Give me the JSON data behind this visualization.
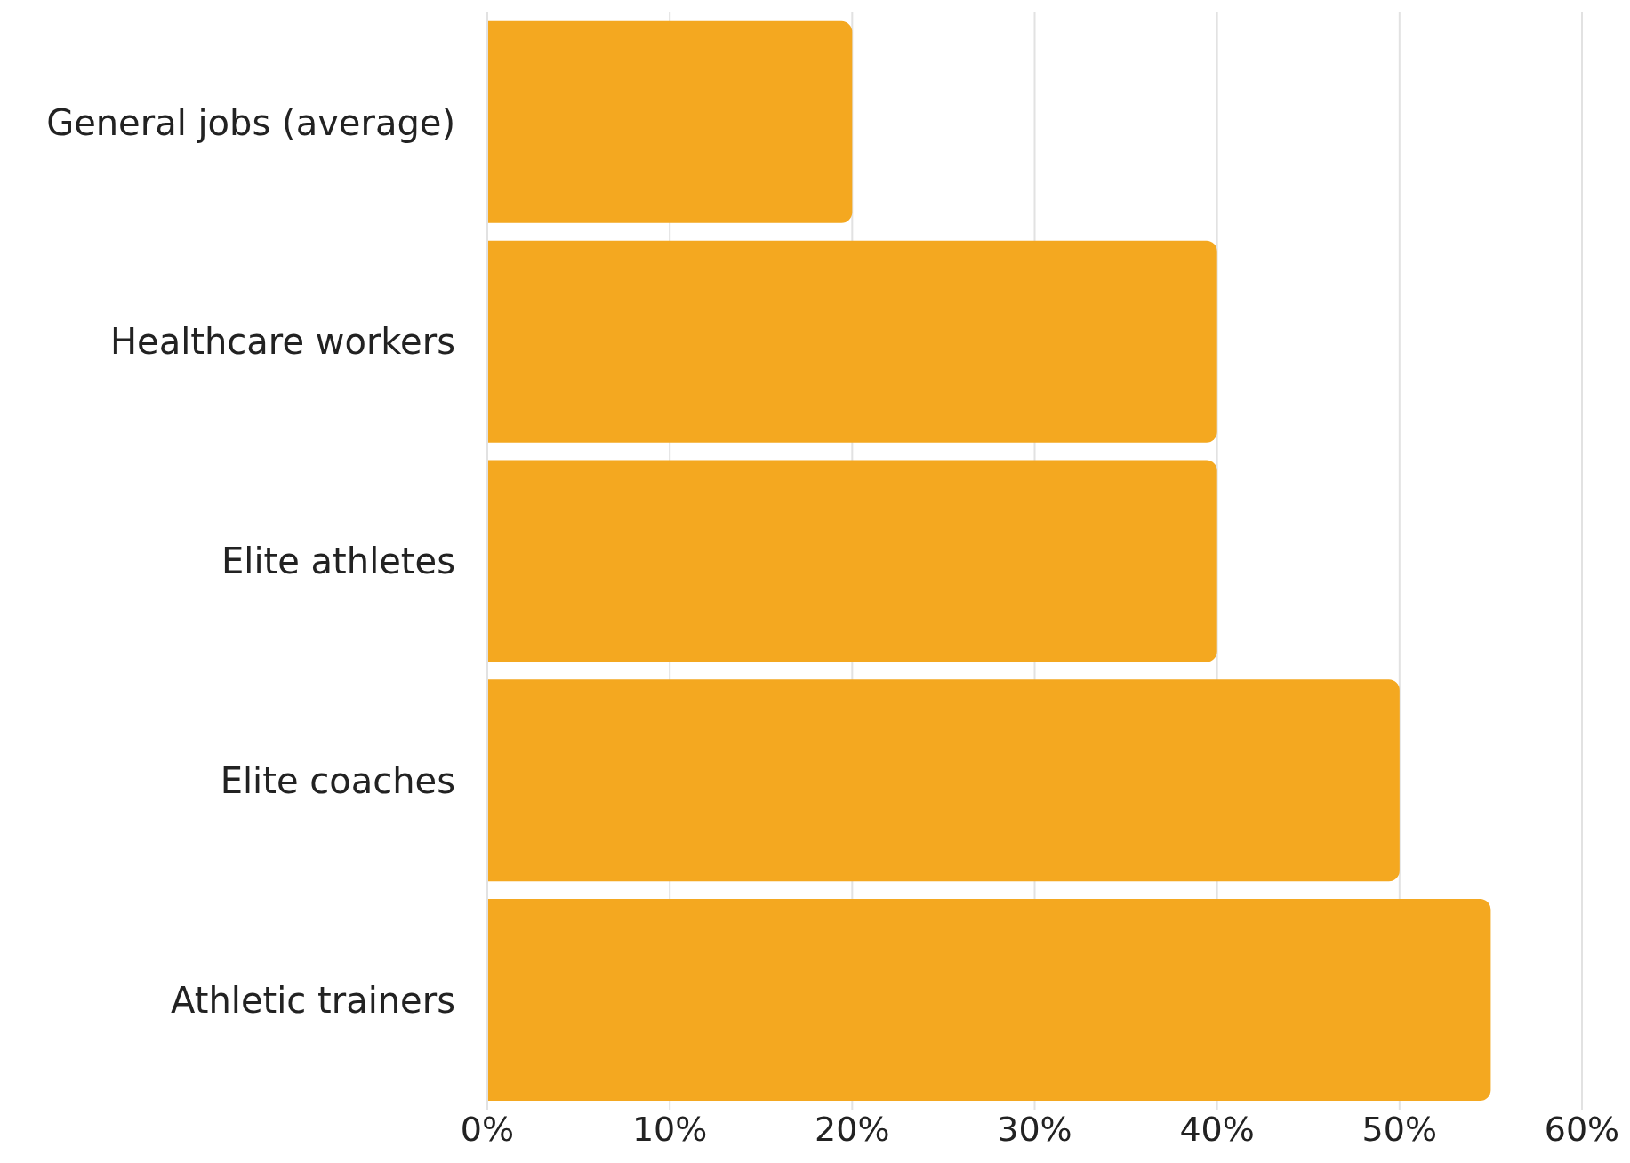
{
  "chart_data": {
    "type": "bar",
    "orientation": "horizontal",
    "categories": [
      "General jobs (average)",
      "Healthcare workers",
      "Elite athletes",
      "Elite coaches",
      "Athletic trainers"
    ],
    "values": [
      20,
      40,
      40,
      50,
      55
    ],
    "color": "#f4a820",
    "xlim": [
      0,
      60
    ],
    "xticks": [
      {
        "value": 0,
        "label": "0%"
      },
      {
        "value": 10,
        "label": "10%"
      },
      {
        "value": 20,
        "label": "20%"
      },
      {
        "value": 30,
        "label": "30%"
      },
      {
        "value": 40,
        "label": "40%"
      },
      {
        "value": 50,
        "label": "50%"
      },
      {
        "value": 60,
        "label": "60%"
      }
    ],
    "grid": "x"
  }
}
